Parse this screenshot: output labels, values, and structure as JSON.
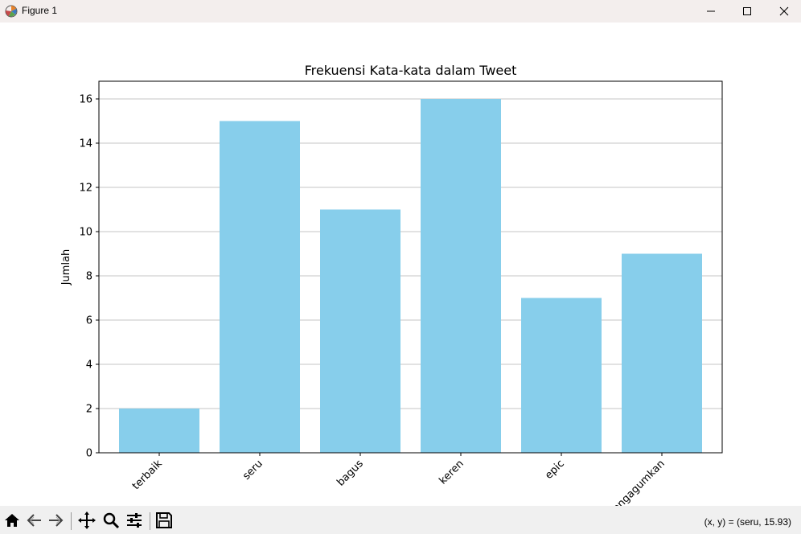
{
  "window": {
    "title": "Figure 1",
    "app_icon": "matplotlib-icon",
    "controls": [
      "minimize-icon",
      "maximize-icon",
      "close-icon"
    ]
  },
  "toolbar": {
    "buttons": [
      "home-icon",
      "back-icon",
      "forward-icon",
      "pan-icon",
      "zoom-icon",
      "configure-subplots-icon",
      "save-icon"
    ],
    "coordinates": "(x, y) = (seru, 15.93)"
  },
  "chart_data": {
    "type": "bar",
    "title": "Frekuensi Kata-kata dalam Tweet",
    "xlabel": "",
    "ylabel": "Jumlah",
    "categories": [
      "terbaik",
      "seru",
      "bagus",
      "keren",
      "epic",
      "mengagumkan"
    ],
    "values": [
      2,
      15,
      11,
      16,
      7,
      9
    ],
    "ylim": [
      0,
      16.8
    ],
    "yticks": [
      0,
      2,
      4,
      6,
      8,
      10,
      12,
      14,
      16
    ],
    "bar_color": "#87ceeb",
    "grid": "y-axis",
    "xtick_rotation": 45
  }
}
